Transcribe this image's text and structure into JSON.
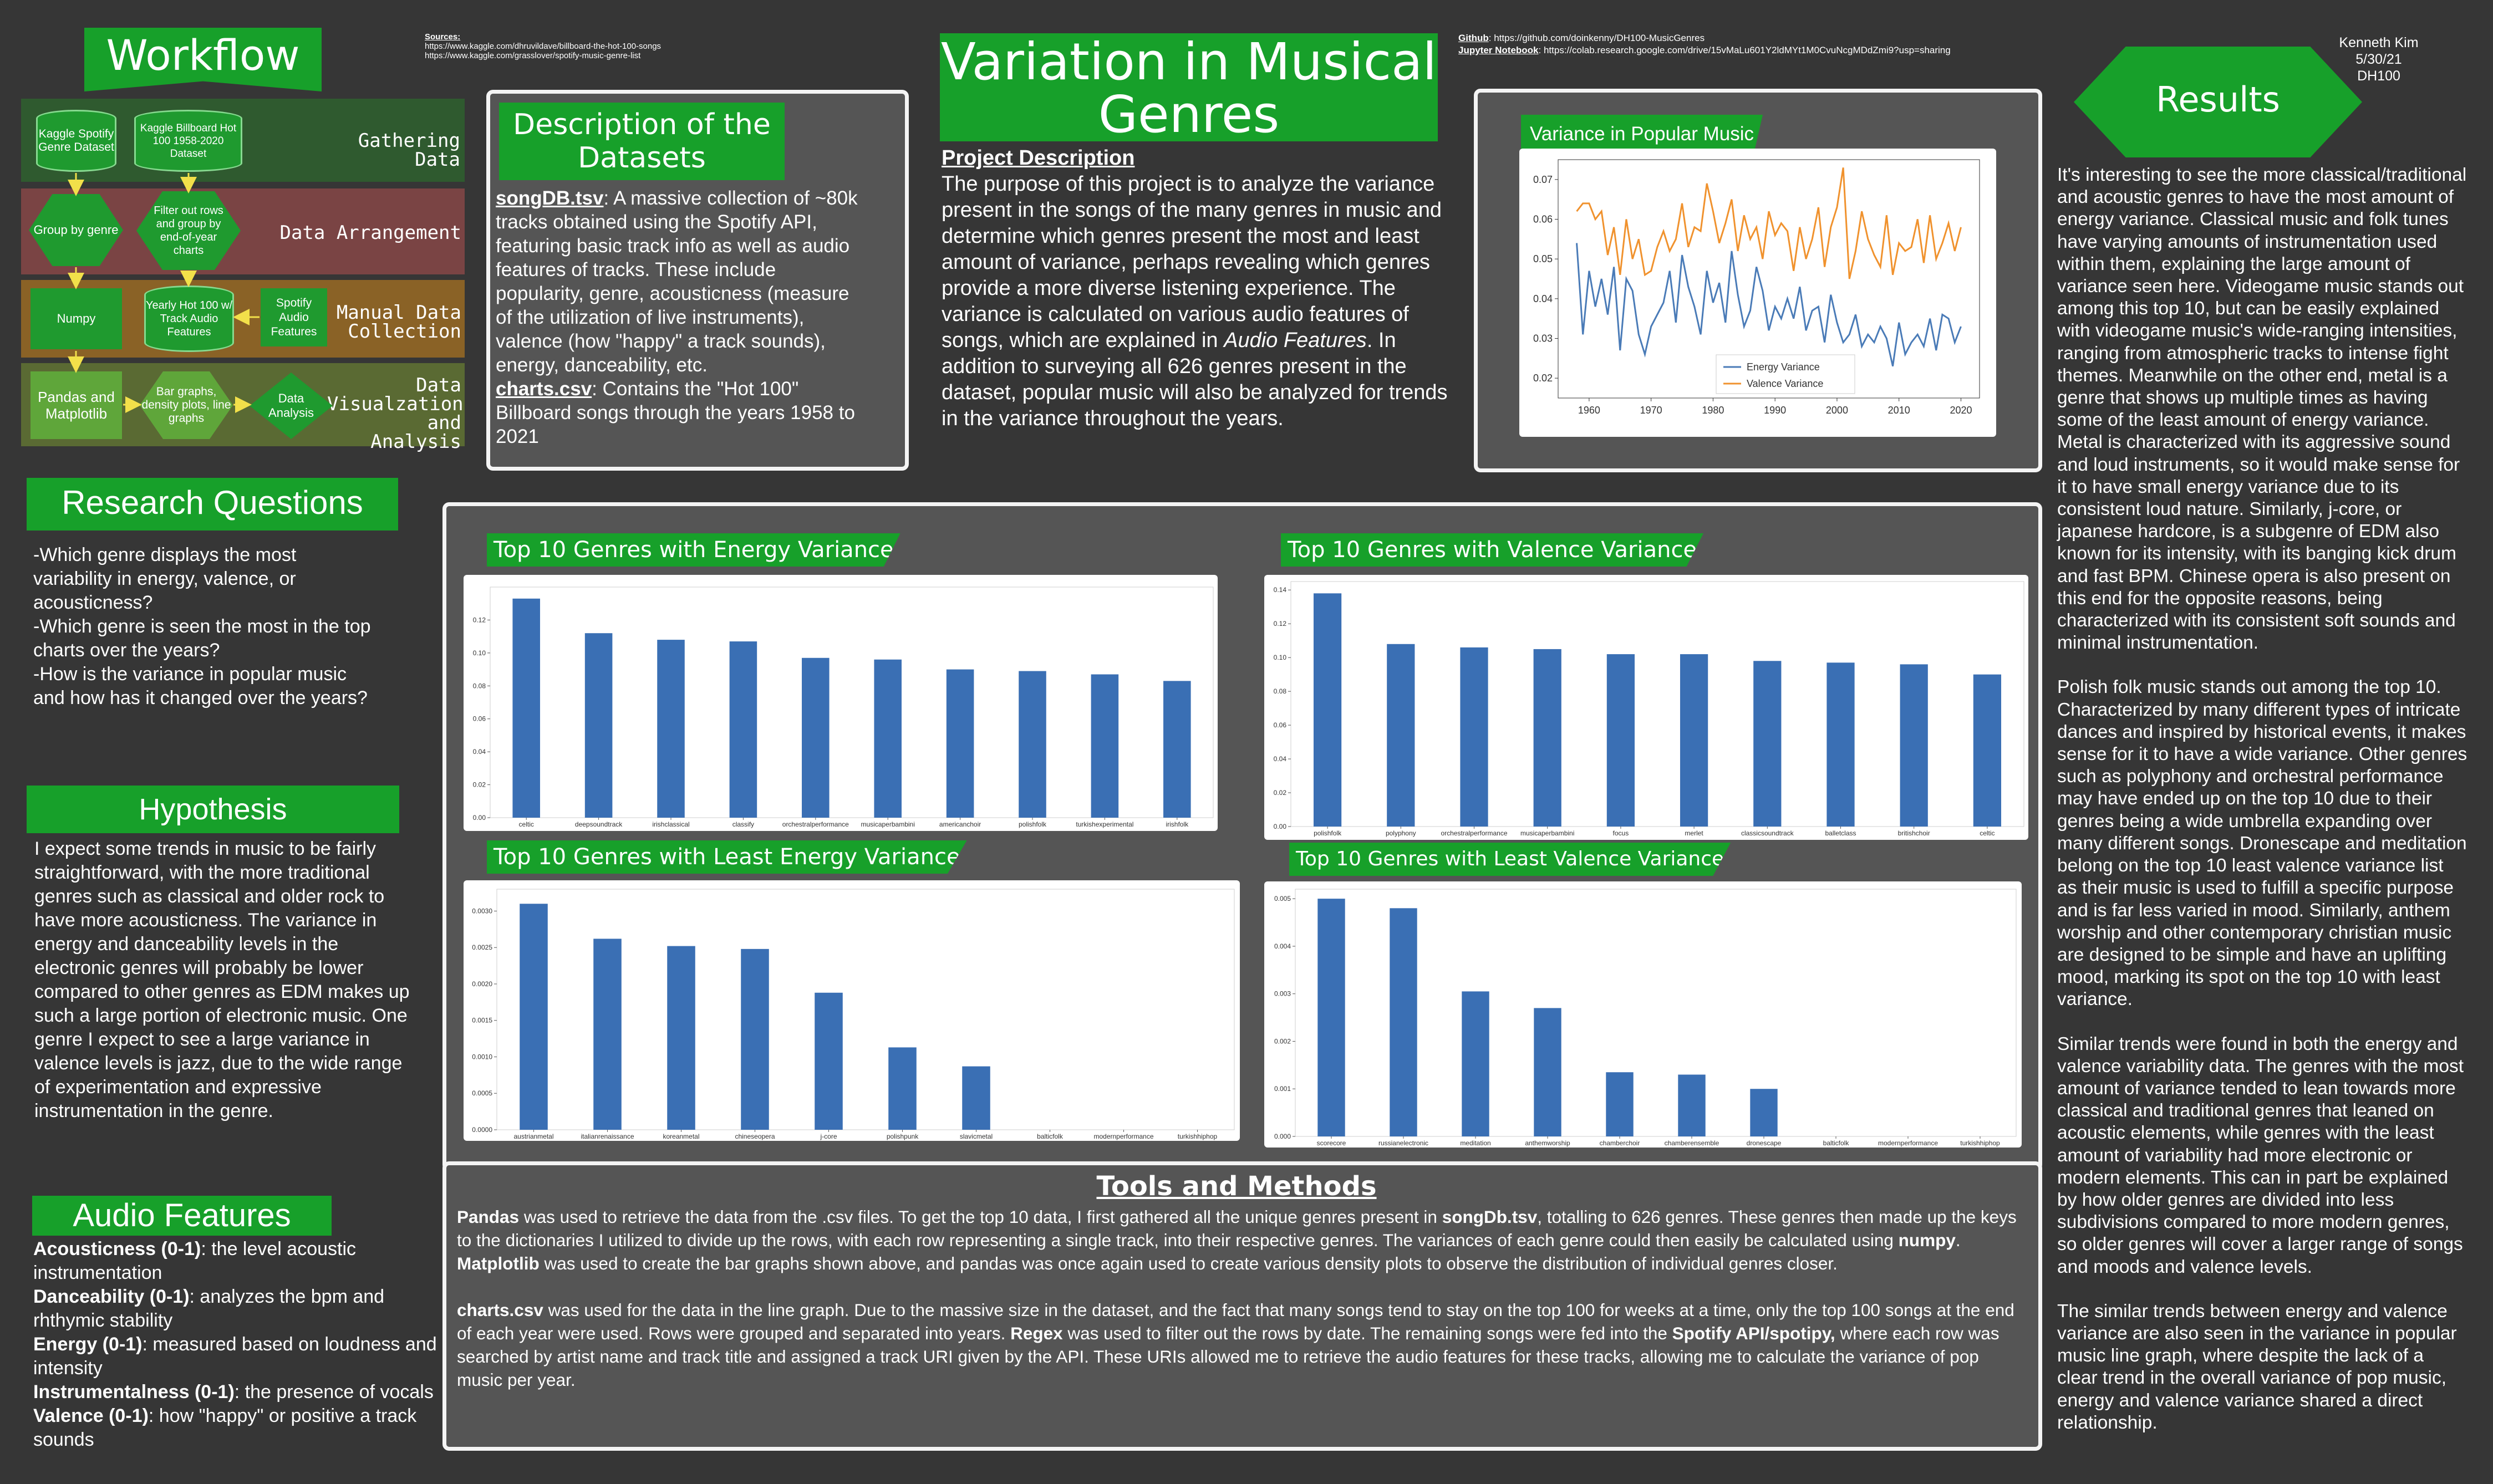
{
  "header": {
    "sources_label": "Sources:",
    "sources": [
      "https://www.kaggle.com/dhruvildave/billboard-the-hot-100-songs",
      "https://www.kaggle.com/grasslover/spotify-music-genre-list"
    ],
    "title": "Variation in Musical Genres",
    "github_label": "Github",
    "github_url": ": https://github.com/doinkenny/DH100-MusicGenres",
    "jupyter_label": "Jupyter Notebook",
    "jupyter_url": ": https://colab.research.google.com/drive/15vMaLu601Y2ldMYt1M0CvuNcgMDdZmi9?usp=sharing",
    "author": "Kenneth Kim",
    "date": "5/30/21",
    "course": "DH100"
  },
  "workflow": {
    "title": "Workflow",
    "rows": [
      {
        "label": "Gathering Data",
        "color": "#2f5a2f"
      },
      {
        "label": "Data Arrangement",
        "color": "#7a4444"
      },
      {
        "label": "Manual Data\nCollection",
        "color": "#8a6226"
      },
      {
        "label": "Data\nVisualzation\nand Analysis",
        "color": "#5a6a33"
      }
    ],
    "nodes": {
      "kaggle_spotify": "Kaggle Spotify Genre Dataset",
      "kaggle_billboard": "Kaggle Billboard Hot 100 1958-2020 Dataset",
      "group_by_genre": "Group by genre",
      "filter_rows": "Filter out rows and group by end-of-year charts",
      "numpy": "Numpy",
      "yearly_hot": "Yearly Hot 100 w/ Track Audio Features",
      "spotify_audio": "Spotify Audio Features",
      "pandas_matplotlib": "Pandas and Matplotlib",
      "bar_graphs": "Bar graphs, density plots, line graphs",
      "data_analysis": "Data Analysis"
    }
  },
  "description": {
    "title": "Description of the Datasets",
    "file1": "songDB.tsv",
    "text1": ": A massive collection of ~80k tracks obtained using the Spotify API, featuring basic track info as well as audio features of tracks. These include popularity, genre, acousticness (measure of the utilization of live instruments), valence (how \"happy\" a track sounds), energy, danceability, etc.",
    "file2": "charts.csv",
    "text2": ": Contains the \"Hot 100\" Billboard songs through the years 1958 to 2021"
  },
  "project": {
    "heading": "Project Description",
    "text_a": "The purpose of this project is to analyze the variance present in the songs of the many genres in music and determine which genres present the most and least amount of variance, perhaps revealing which genres provide a more diverse listening experience. The variance is calculated on various audio features of songs, which are explained in ",
    "text_em": "Audio Features",
    "text_b": ". In addition to surveying all 626 genres present in the dataset, popular music will also be analyzed for trends in the variance throughout the years."
  },
  "research": {
    "title": "Research Questions",
    "items": [
      "-Which genre displays the most variability in energy, valence, or acousticness?",
      "-Which genre is seen the most in the top charts over the years?",
      "-How is the variance in popular music and how has it changed over the years?"
    ]
  },
  "hypothesis": {
    "title": "Hypothesis",
    "text": "I expect some trends in music to be fairly straightforward, with the more traditional genres such as classical and older rock to have more acousticness. The variance in energy and danceability levels in the electronic genres will probably be lower compared to other genres as EDM makes up such a large portion of electronic music. One genre I expect to see a large variance in valence levels is jazz, due to the wide range of experimentation and expressive instrumentation in the genre."
  },
  "audio": {
    "title": "Audio Features",
    "items": [
      {
        "name": "Acousticness (0-1)",
        "desc": ": the level acoustic instrumentation"
      },
      {
        "name": "Danceability (0-1)",
        "desc": ": analyzes the bpm and rhthymic stability"
      },
      {
        "name": "Energy (0-1)",
        "desc": ": measured based on loudness and intensity"
      },
      {
        "name": "Instrumentalness (0-1)",
        "desc": ": the presence of vocals"
      },
      {
        "name": "Valence (0-1)",
        "desc": ": how \"happy\" or positive a track sounds"
      }
    ]
  },
  "tools": {
    "title": "Tools and Methods",
    "p1": [
      {
        "b": "Pandas"
      },
      {
        "t": " was used to retrieve the data from the .csv files. To get the top 10 data, I first gathered all the unique genres present in "
      },
      {
        "b": "songDb.tsv"
      },
      {
        "t": ", totalling to 626 genres. These genres then made up the keys to the dictionaries I utilized to divide up the rows, with each row representing a single track, into their respective genres. The variances of each genre could then easily be calculated using "
      },
      {
        "b": "numpy"
      },
      {
        "t": ". "
      },
      {
        "b": "Matplotlib"
      },
      {
        "t": " was used to create the bar graphs shown above, and pandas was once again used to create various density plots to observe the distribution of individual genres closer."
      }
    ],
    "p2": [
      {
        "b": "charts.csv"
      },
      {
        "t": " was used for the data in the line graph. Due to the massive size in the dataset, and the fact that many songs tend to stay on the top 100 for weeks at a time, only the top 100 songs at the end of each year were used. Rows were grouped and separated into years. "
      },
      {
        "b": "Regex"
      },
      {
        "t": " was used to filter out the rows by date. The remaining songs were fed into the "
      },
      {
        "b": "Spotify API/spotipy,"
      },
      {
        "t": " where each row was searched by artist name and track title and assigned a track URI given by the API. These URIs allowed me to retrieve the audio features for these tracks, allowing me to calculate the variance of pop music per year."
      }
    ]
  },
  "results": {
    "title": "Results",
    "paragraphs": [
      "It's interesting to see the more classical/traditional and acoustic genres to have the most amount of energy variance. Classical music and folk tunes have varying amounts of instrumentation used within them, explaining the large amount of variance seen here. Videogame music stands out among this top 10, but can be easily explained with videogame music's wide-ranging intensities, ranging from atmospheric tracks to intense fight themes. Meanwhile on the other end, metal is a genre that shows up multiple times as having some of the least amount of energy variance. Metal is characterized with its aggressive sound and loud instruments, so it would make sense for it to have small energy variance due to its consistent loud nature. Similarly, j-core, or japanese hardcore, is a subgenre of EDM also known for its intensity, with its banging kick drum and fast BPM. Chinese opera is also present on this end for the opposite reasons, being characterized with its consistent soft sounds and minimal instrumentation.",
      "Polish folk music stands out among the top 10. Characterized by many different types of intricate dances and inspired by historical events, it makes sense for it to have a wide variance. Other genres such as polyphony and orchestral performance may have ended up on the top 10 due to their genres being a wide umbrella expanding over many different songs. Dronescape and meditation belong on the top 10 least valence variance list as their music is used to fulfill a specific purpose and is far less varied in mood. Similarly, anthem worship and other contemporary christian music are designed to be simple and have an uplifting mood, marking its spot on the top 10 with least variance.",
      "Similar trends were found in both the energy and valence variability data. The genres with the most amount of variance tended to lean towards more classical and traditional genres that leaned on acoustic elements, while genres with the least amount of variability had more electronic or modern elements. This can in part be explained by how older genres are divided into less subdivisions compared to more modern genres, so older genres will cover a larger range of songs and moods and valence levels.",
      "The similar trends between energy and valence variance are also seen in the variance in popular music line graph, where despite the lack of a clear trend in the overall variance of pop music, energy and valence variance shared a direct relationship."
    ]
  },
  "colors": {
    "bar": "#3a6fb4",
    "energy_line": "#4a7bb7",
    "valence_line": "#f0922e",
    "accent_green": "#17a02a"
  },
  "chart_data": [
    {
      "type": "line",
      "title": "Variance in Popular Music",
      "x": [
        1958,
        1959,
        1960,
        1961,
        1962,
        1963,
        1964,
        1965,
        1966,
        1967,
        1968,
        1969,
        1970,
        1971,
        1972,
        1973,
        1974,
        1975,
        1976,
        1977,
        1978,
        1979,
        1980,
        1981,
        1982,
        1983,
        1984,
        1985,
        1986,
        1987,
        1988,
        1989,
        1990,
        1991,
        1992,
        1993,
        1994,
        1995,
        1996,
        1997,
        1998,
        1999,
        2000,
        2001,
        2002,
        2003,
        2004,
        2005,
        2006,
        2007,
        2008,
        2009,
        2010,
        2011,
        2012,
        2013,
        2014,
        2015,
        2016,
        2017,
        2018,
        2019,
        2020
      ],
      "series": [
        {
          "name": "Energy Variance",
          "values": [
            0.054,
            0.031,
            0.047,
            0.038,
            0.045,
            0.036,
            0.048,
            0.027,
            0.045,
            0.042,
            0.031,
            0.026,
            0.033,
            0.036,
            0.039,
            0.047,
            0.034,
            0.051,
            0.043,
            0.038,
            0.031,
            0.047,
            0.039,
            0.044,
            0.034,
            0.052,
            0.041,
            0.033,
            0.037,
            0.048,
            0.042,
            0.032,
            0.038,
            0.035,
            0.04,
            0.035,
            0.043,
            0.032,
            0.037,
            0.038,
            0.029,
            0.041,
            0.034,
            0.029,
            0.031,
            0.036,
            0.028,
            0.031,
            0.029,
            0.033,
            0.03,
            0.023,
            0.034,
            0.026,
            0.029,
            0.031,
            0.028,
            0.035,
            0.027,
            0.036,
            0.035,
            0.029,
            0.033
          ]
        },
        {
          "name": "Valence Variance",
          "values": [
            0.062,
            0.064,
            0.064,
            0.06,
            0.062,
            0.051,
            0.058,
            0.046,
            0.06,
            0.05,
            0.055,
            0.046,
            0.047,
            0.053,
            0.057,
            0.052,
            0.055,
            0.064,
            0.053,
            0.058,
            0.057,
            0.069,
            0.062,
            0.054,
            0.059,
            0.065,
            0.052,
            0.061,
            0.055,
            0.058,
            0.05,
            0.062,
            0.056,
            0.059,
            0.057,
            0.047,
            0.058,
            0.05,
            0.055,
            0.063,
            0.048,
            0.058,
            0.063,
            0.073,
            0.045,
            0.052,
            0.062,
            0.055,
            0.051,
            0.048,
            0.061,
            0.046,
            0.054,
            0.052,
            0.053,
            0.06,
            0.049,
            0.061,
            0.05,
            0.054,
            0.059,
            0.052,
            0.058
          ]
        }
      ],
      "ylim": [
        0.015,
        0.075
      ],
      "yticks": [
        0.02,
        0.03,
        0.04,
        0.05,
        0.06,
        0.07
      ],
      "xticks": [
        1960,
        1970,
        1980,
        1990,
        2000,
        2010,
        2020
      ],
      "legend": "bottom-center"
    },
    {
      "type": "bar",
      "title": "Top 10 Genres with Energy Variance",
      "categories": [
        "celtic",
        "deepsoundtrack",
        "irishclassical",
        "classify",
        "orchestralperformance",
        "musicaperbambini",
        "americanchoir",
        "polishfolk",
        "turkishexperimental",
        "irishfolk"
      ],
      "values": [
        0.133,
        0.112,
        0.108,
        0.107,
        0.097,
        0.096,
        0.09,
        0.089,
        0.087,
        0.083
      ],
      "ylim": [
        0,
        0.14
      ],
      "yticks": [
        0.0,
        0.02,
        0.04,
        0.06,
        0.08,
        0.1,
        0.12
      ]
    },
    {
      "type": "bar",
      "title": "Top 10 Genres with Valence Variance",
      "categories": [
        "polishfolk",
        "polyphony",
        "orchestralperformance",
        "musicaperbambini",
        "focus",
        "merlet",
        "classicsoundtrack",
        "balletclass",
        "britishchoir",
        "celtic"
      ],
      "values": [
        0.138,
        0.108,
        0.106,
        0.105,
        0.102,
        0.102,
        0.098,
        0.097,
        0.096,
        0.09
      ],
      "ylim": [
        0,
        0.145
      ],
      "yticks": [
        0.0,
        0.02,
        0.04,
        0.06,
        0.08,
        0.1,
        0.12,
        0.14
      ]
    },
    {
      "type": "bar",
      "title": "Top 10 Genres with Least Energy Variance",
      "categories": [
        "austrianmetal",
        "italianrenaissance",
        "koreanmetal",
        "chineseopera",
        "j-core",
        "polishpunk",
        "slavicmetal",
        "balticfolk",
        "modernperformance",
        "turkishhiphop"
      ],
      "values": [
        0.0031,
        0.00262,
        0.00252,
        0.00248,
        0.00188,
        0.00113,
        0.00087,
        0.0,
        0.0,
        0.0
      ],
      "ylim": [
        0,
        0.0033
      ],
      "yticks": [
        0.0,
        0.0005,
        0.001,
        0.0015,
        0.002,
        0.0025,
        0.003
      ]
    },
    {
      "type": "bar",
      "title": "Top 10 Genres with Least Valence Variance",
      "categories": [
        "scorecore",
        "russianelectronic",
        "meditation",
        "anthemworship",
        "chamberchoir",
        "chamberensemble",
        "dronescape",
        "balticfolk",
        "modernperformance",
        "turkishhiphop"
      ],
      "values": [
        0.005,
        0.0048,
        0.00305,
        0.0027,
        0.00135,
        0.0013,
        0.001,
        0.0,
        0.0,
        0.0
      ],
      "ylim": [
        0,
        0.0052
      ],
      "yticks": [
        0.0,
        0.001,
        0.002,
        0.003,
        0.004,
        0.005
      ]
    }
  ]
}
